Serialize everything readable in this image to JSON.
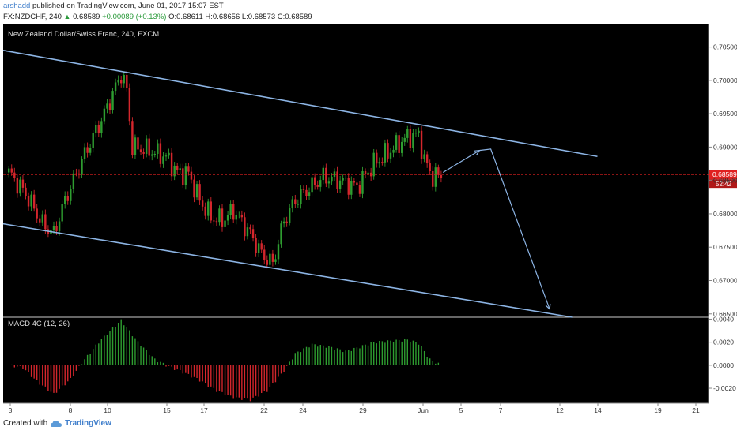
{
  "header": {
    "author": "arshadd",
    "published_text": "published on TradingView.com, June 01, 2017 15:07 EST",
    "symbol_interval": "FX:NZDCHF, 240",
    "last_price": "0.68589",
    "change_text": "+0.00089 (+0.13%)",
    "ohlc": {
      "o": "O:0.68611",
      "h": "H:0.68656",
      "l": "L:0.68573",
      "c": "C:0.68589"
    }
  },
  "footer": {
    "created_with": "Created with",
    "brand": "TradingView"
  },
  "colors": {
    "background": "#000000",
    "up": "#2e9d30",
    "down": "#d4262c",
    "channel": "#8cb4e4",
    "price_line": "#e02020",
    "axis_text": "#333333"
  },
  "chart_data": [
    {
      "type": "candlestick",
      "title": "New Zealand Dollar/Swiss Franc, 240, FXCM",
      "y_ticks": [
        0.705,
        0.7,
        0.695,
        0.69,
        0.685,
        0.68,
        0.675,
        0.67,
        0.665
      ],
      "y_tick_labels": [
        "0.70500",
        "0.70000",
        "0.69500",
        "0.69000",
        "0.68500",
        "0.68000",
        "0.67500",
        "0.67000",
        "0.66500"
      ],
      "ylim": [
        0.6645,
        0.7085
      ],
      "x_tick_labels": [
        "3",
        "8",
        "10",
        "15",
        "17",
        "22",
        "24",
        "29",
        "Jun",
        "5",
        "7",
        "12",
        "14",
        "19",
        "21"
      ],
      "current_price": 0.68589,
      "current_price_label": "0.68589",
      "countdown_label": "52:42",
      "price_path_anchors": [
        [
          0,
          0.6862
        ],
        [
          6,
          0.683
        ],
        [
          12,
          0.6785
        ],
        [
          16,
          0.677
        ],
        [
          20,
          0.682
        ],
        [
          26,
          0.688
        ],
        [
          34,
          0.695
        ],
        [
          40,
          0.701
        ],
        [
          42,
          0.6985
        ],
        [
          44,
          0.69
        ],
        [
          50,
          0.6895
        ],
        [
          56,
          0.6885
        ],
        [
          60,
          0.6862
        ],
        [
          64,
          0.686
        ],
        [
          68,
          0.682
        ],
        [
          72,
          0.6795
        ],
        [
          76,
          0.679
        ],
        [
          80,
          0.6805
        ],
        [
          86,
          0.677
        ],
        [
          90,
          0.674
        ],
        [
          94,
          0.6725
        ],
        [
          98,
          0.679
        ],
        [
          102,
          0.682
        ],
        [
          106,
          0.6835
        ],
        [
          112,
          0.6855
        ],
        [
          118,
          0.685
        ],
        [
          124,
          0.684
        ],
        [
          130,
          0.6875
        ],
        [
          136,
          0.6895
        ],
        [
          142,
          0.6915
        ],
        [
          146,
          0.6918
        ],
        [
          148,
          0.688
        ],
        [
          151,
          0.6855
        ],
        [
          154,
          0.6858
        ]
      ],
      "channel_lines": [
        {
          "from": [
            0,
            0.7045
          ],
          "to": [
            210,
            0.6886
          ]
        },
        {
          "from": [
            0,
            0.6785
          ],
          "to": [
            201,
            0.6645
          ]
        }
      ],
      "projection": [
        [
          155,
          0.6862
        ],
        [
          168,
          0.6895
        ],
        [
          172,
          0.6897
        ],
        [
          193,
          0.6657
        ]
      ]
    },
    {
      "type": "bar",
      "title": "MACD 4C (12, 26)",
      "y_ticks": [
        0.004,
        0.002,
        0.0,
        -0.002
      ],
      "y_tick_labels": [
        "0.0040",
        "0.0020",
        "0.0000",
        "-0.0020"
      ],
      "ylim": [
        -0.0033,
        0.0041
      ],
      "histogram_anchors": [
        [
          0,
          0.0
        ],
        [
          5,
          -0.0002
        ],
        [
          10,
          -0.0014
        ],
        [
          16,
          -0.0025
        ],
        [
          22,
          -0.0012
        ],
        [
          26,
          0.0002
        ],
        [
          32,
          0.002
        ],
        [
          40,
          0.0039
        ],
        [
          46,
          0.002
        ],
        [
          52,
          0.0005
        ],
        [
          56,
          0.0
        ],
        [
          62,
          -0.0006
        ],
        [
          68,
          -0.0013
        ],
        [
          74,
          -0.0022
        ],
        [
          80,
          -0.0028
        ],
        [
          86,
          -0.003
        ],
        [
          92,
          -0.0022
        ],
        [
          98,
          -0.0005
        ],
        [
          102,
          0.001
        ],
        [
          108,
          0.0018
        ],
        [
          114,
          0.0016
        ],
        [
          120,
          0.0012
        ],
        [
          124,
          0.0015
        ],
        [
          130,
          0.002
        ],
        [
          136,
          0.0021
        ],
        [
          142,
          0.0022
        ],
        [
          146,
          0.0019
        ],
        [
          150,
          0.0005
        ],
        [
          154,
          0.0
        ]
      ]
    }
  ]
}
